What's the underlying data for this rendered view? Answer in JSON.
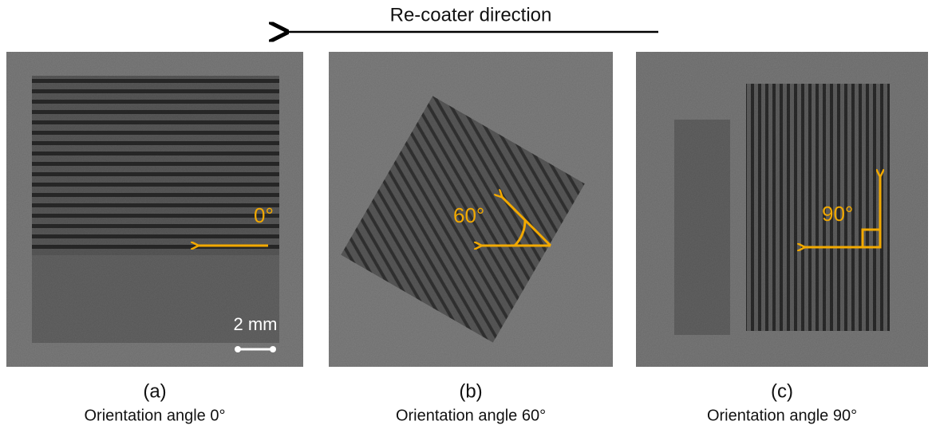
{
  "title": "Re-coater direction",
  "panels": [
    {
      "label": "(a)",
      "caption": "Orientation angle 0°",
      "angle_label": "0°",
      "scale_bar": "2 mm"
    },
    {
      "label": "(b)",
      "caption": "Orientation angle 60°",
      "angle_label": "60°"
    },
    {
      "label": "(c)",
      "caption": "Orientation angle 90°",
      "angle_label": "90°"
    }
  ]
}
